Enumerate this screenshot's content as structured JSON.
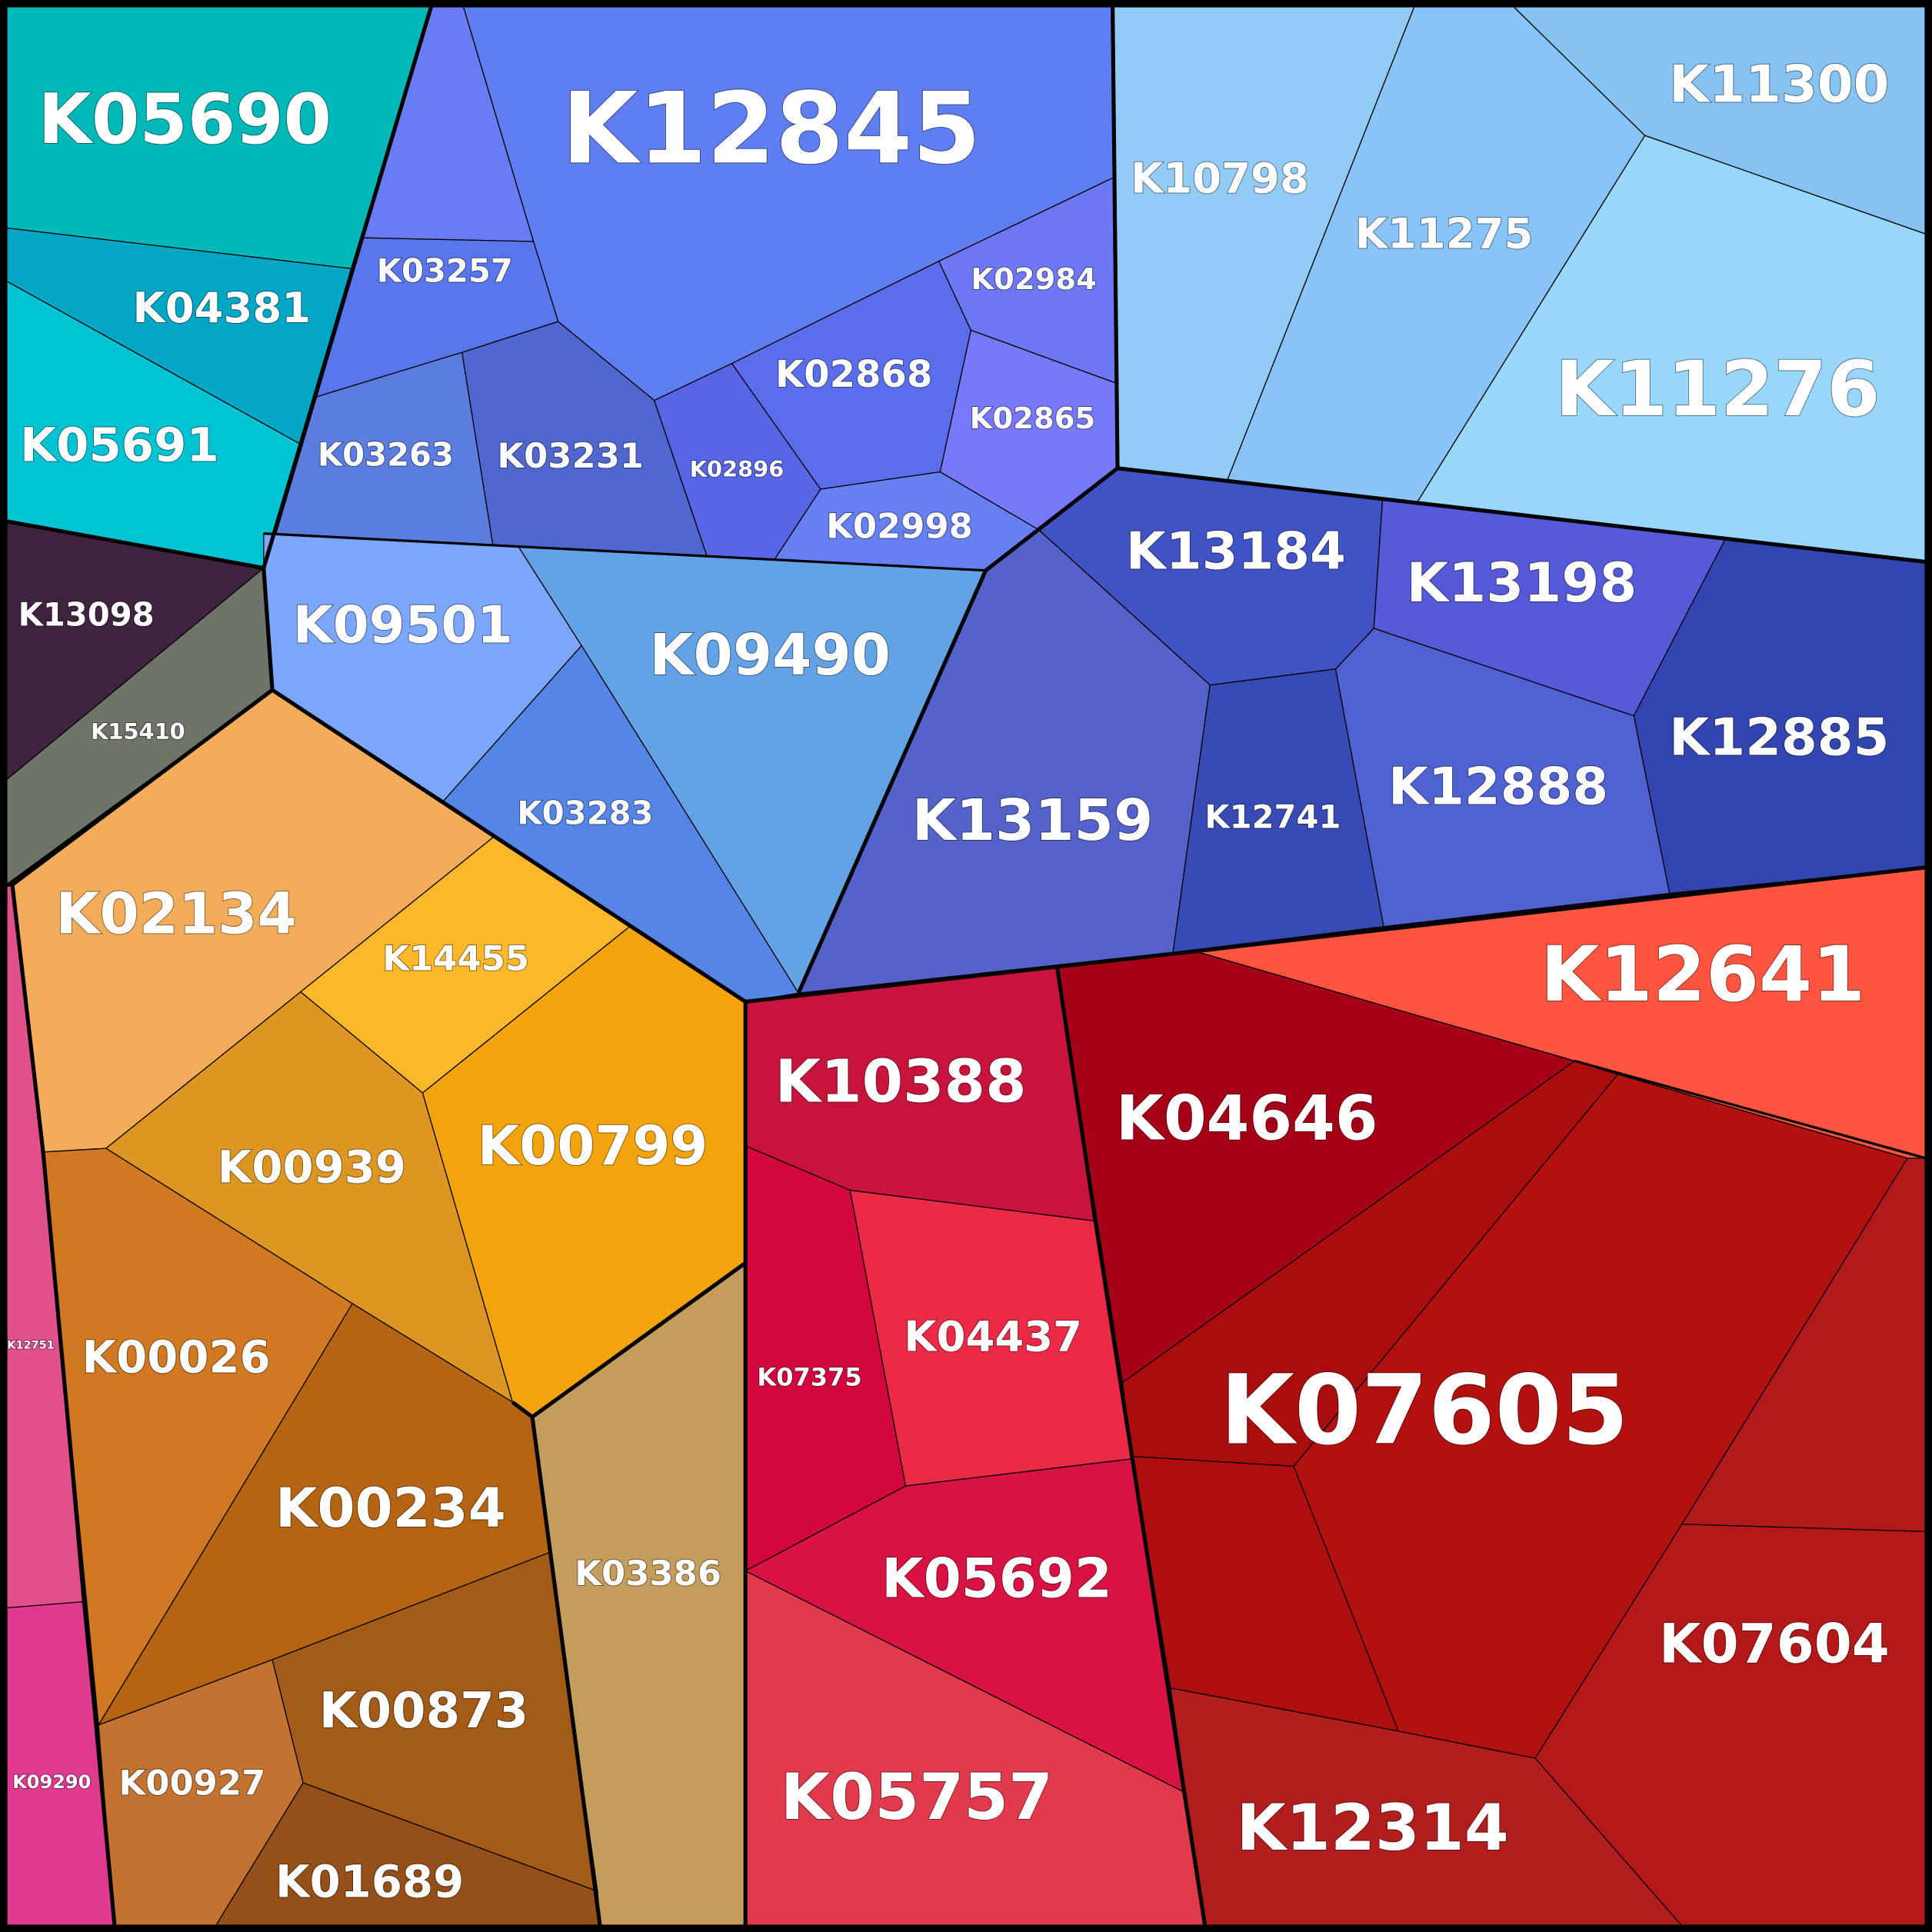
{
  "cells": [
    {
      "label": "K05690",
      "color": "#00b8b8"
    },
    {
      "label": "K04381",
      "color": "#03a6c4"
    },
    {
      "label": "K05691",
      "color": "#00c4d4"
    },
    {
      "label": "K13098",
      "color": "#3f2440"
    },
    {
      "label": "K15410",
      "color": "#6e7468"
    },
    {
      "label": "K12845",
      "color": "#5e7ef2"
    },
    {
      "label": "K03257",
      "color": "#5a76ec"
    },
    {
      "label": "K03263",
      "color": "#5b7ddf"
    },
    {
      "label": "K03231",
      "color": "#4f67cf"
    },
    {
      "label": "K02896",
      "color": "#5866e6"
    },
    {
      "label": "K02868",
      "color": "#5a6eec"
    },
    {
      "label": "K02984",
      "color": "#6e78f5"
    },
    {
      "label": "K02865",
      "color": "#7878fa"
    },
    {
      "label": "K02998",
      "color": "#6680f2"
    },
    {
      "label": "K10798",
      "color": "#92cbf5"
    },
    {
      "label": "K11275",
      "color": "#88c4f8"
    },
    {
      "label": "K11300",
      "color": "#86c2f2"
    },
    {
      "label": "K11276",
      "color": "#98d6fa"
    },
    {
      "label": "K09501",
      "color": "#7ba6fa"
    },
    {
      "label": "K09490",
      "color": "#63a3e5"
    },
    {
      "label": "K03283",
      "color": "#5585e5"
    },
    {
      "label": "K13184",
      "color": "#4152c4"
    },
    {
      "label": "K13159",
      "color": "#5562c9"
    },
    {
      "label": "K12741",
      "color": "#384bb5"
    },
    {
      "label": "K13198",
      "color": "#5659d8"
    },
    {
      "label": "K12888",
      "color": "#5062d1"
    },
    {
      "label": "K12885",
      "color": "#3345b0"
    },
    {
      "label": "K02134",
      "color": "#f3ad5a"
    },
    {
      "label": "K14455",
      "color": "#fcb82a"
    },
    {
      "label": "K00939",
      "color": "#de9622"
    },
    {
      "label": "K00799",
      "color": "#f2a30e"
    },
    {
      "label": "K00026",
      "color": "#d07822"
    },
    {
      "label": "K00234",
      "color": "#b56413"
    },
    {
      "label": "K03386",
      "color": "#c49d5c"
    },
    {
      "label": "K00927",
      "color": "#c47232"
    },
    {
      "label": "K00873",
      "color": "#a35c18"
    },
    {
      "label": "K01689",
      "color": "#954f19"
    },
    {
      "label": "K12751",
      "color": "#e0508a"
    },
    {
      "label": "K09290",
      "color": "#e03a90"
    },
    {
      "label": "K10388",
      "color": "#c8143c"
    },
    {
      "label": "K07375",
      "color": "#d4063e"
    },
    {
      "label": "K04437",
      "color": "#ec2a48"
    },
    {
      "label": "K05692",
      "color": "#d81242"
    },
    {
      "label": "K05757",
      "color": "#e13a4c"
    },
    {
      "label": "K04646",
      "color": "#a50018"
    },
    {
      "label": "K12641",
      "color": "#ff5540"
    },
    {
      "label": "K07605",
      "color": "#b31010"
    },
    {
      "label": "K07604",
      "color": "#b51818"
    },
    {
      "label": "K12314",
      "color": "#b21e1e"
    }
  ]
}
